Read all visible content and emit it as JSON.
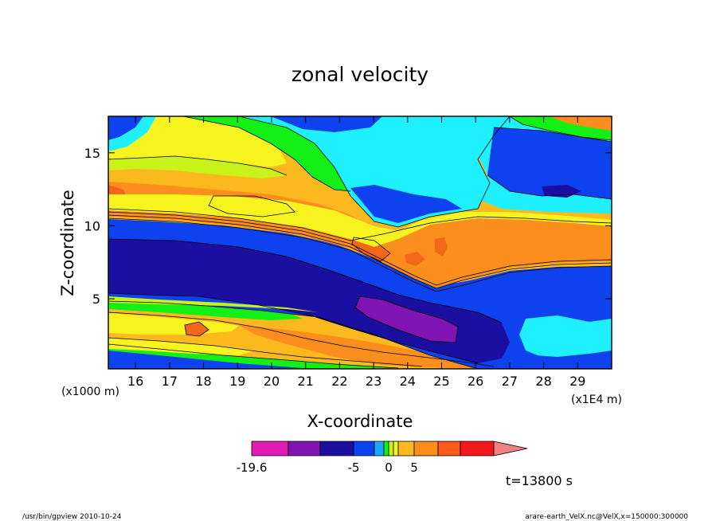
{
  "chart_data": {
    "type": "heatmap",
    "title": "zonal velocity",
    "xlabel": "X-coordinate",
    "ylabel": "Z-coordinate",
    "x_unit": "(x1E4 m)",
    "y_unit": "(x1000 m)",
    "xlim": [
      15.2,
      30.0
    ],
    "ylim": [
      0.2,
      17.5
    ],
    "x_ticks": [
      "16",
      "17",
      "18",
      "19",
      "20",
      "21",
      "22",
      "23",
      "24",
      "25",
      "26",
      "27",
      "28",
      "29"
    ],
    "y_ticks": [
      "5",
      "10",
      "15"
    ],
    "time_label": "t=13800 s",
    "colorbar": {
      "labels": [
        "-19.6",
        "-5",
        "0",
        "5"
      ],
      "levels": [
        -19.6,
        -15,
        -10,
        -5,
        -3,
        -1,
        0,
        1,
        3,
        5,
        10,
        15
      ],
      "colors": [
        "#e21bb4",
        "#8014b4",
        "#1a0fa0",
        "#0e42ef",
        "#1aa8ff",
        "#12f016",
        "#c9f219",
        "#f7f31e",
        "#fcb91e",
        "#fc8e1c",
        "#fb5a1a",
        "#f2191d",
        "#f38080"
      ]
    },
    "palette": {
      "magenta": "#e21bb4",
      "purple": "#8014b4",
      "navy": "#1a0fa0",
      "blue": "#0e42ef",
      "cyan": "#1ef0ff",
      "green": "#12f016",
      "lime": "#c9f219",
      "yellow": "#f7f31e",
      "gold": "#fcb91e",
      "orange": "#fb8e1c",
      "darkorange": "#f46719",
      "red": "#f2191d",
      "pink": "#f38080"
    }
  },
  "footer": {
    "left": "/usr/bin/gpview   2010-10-24",
    "right": "arare-earth_VelX.nc@VelX,x=150000:300000"
  }
}
